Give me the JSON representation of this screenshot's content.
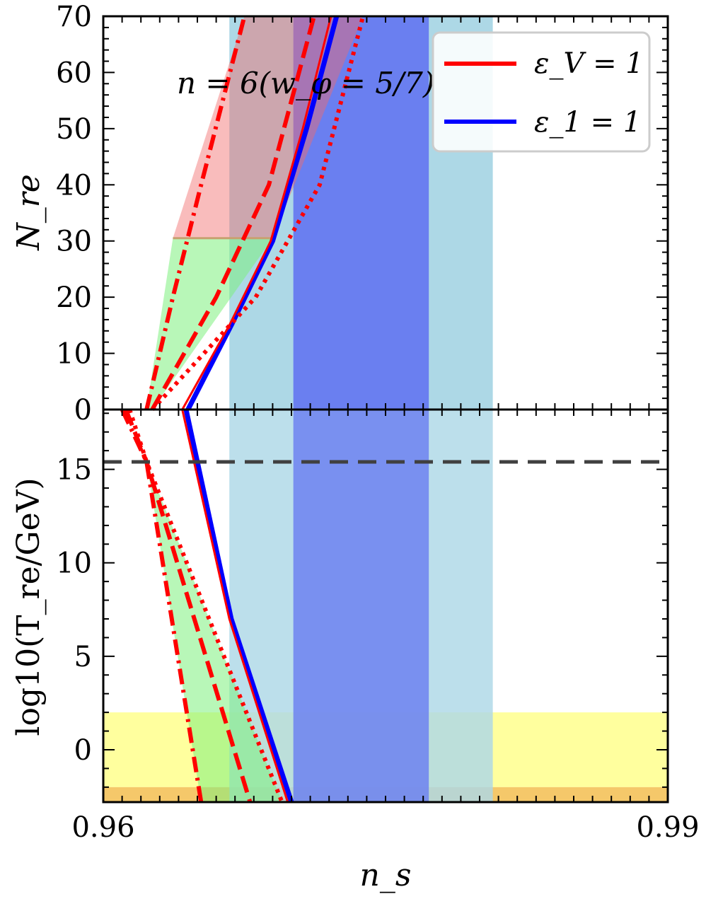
{
  "chart_data": [
    {
      "type": "line",
      "panel": "top",
      "xlim": [
        0.96,
        0.99
      ],
      "ylim": [
        0,
        70
      ],
      "ylabel": "N_re",
      "y_ticks": [
        "0",
        "10",
        "20",
        "30",
        "40",
        "50",
        "60",
        "70"
      ],
      "annotation": "n = 6(w_φ = 5/7)",
      "legend": {
        "placement": "top-right",
        "entries": [
          {
            "label": "ε_V = 1",
            "color": "#ff0000"
          },
          {
            "label": "ε_1 = 1",
            "color": "#0000ff"
          }
        ]
      },
      "bands": [
        {
          "name": "light-blue",
          "color": "#add8e6",
          "x": [
            0.9667,
            0.9807
          ]
        },
        {
          "name": "blue",
          "color": "#6a7ff0",
          "x": [
            0.9701,
            0.9773
          ]
        }
      ],
      "series": [
        {
          "name": "ε_1 = 1",
          "color": "#0000ff",
          "style": "solid",
          "x": [
            0.9645,
            0.9668,
            0.969,
            0.9708,
            0.9724
          ],
          "y": [
            0,
            15,
            30,
            50,
            70
          ]
        },
        {
          "name": "ε_V = 1",
          "color": "#ff0000",
          "style": "solid",
          "x": [
            0.9642,
            0.9667,
            0.9689,
            0.9706,
            0.9721
          ],
          "y": [
            0,
            15,
            30,
            50,
            70
          ]
        },
        {
          "style": "dash-dot",
          "color": "#ff0000",
          "x": [
            0.9623,
            0.9637,
            0.9652,
            0.9675
          ],
          "y": [
            0,
            20,
            40,
            70
          ]
        },
        {
          "style": "dashed",
          "color": "#ff0000",
          "x": [
            0.9626,
            0.966,
            0.9688,
            0.9712
          ],
          "y": [
            0,
            20,
            40,
            70
          ]
        },
        {
          "style": "dotted",
          "color": "#ff0000",
          "x": [
            0.9626,
            0.9681,
            0.9715,
            0.9738
          ],
          "y": [
            0,
            20,
            40,
            70
          ]
        }
      ]
    },
    {
      "type": "line",
      "panel": "bottom",
      "xlim": [
        0.96,
        0.99
      ],
      "ylim": [
        -2.8,
        18.2
      ],
      "xlabel": "n_s",
      "ylabel": "log10(T_re/GeV)",
      "x_ticks": [
        "0.96",
        "0.99"
      ],
      "y_ticks": [
        "0",
        "5",
        "10",
        "15"
      ],
      "hlines": [
        {
          "y": 15.4,
          "style": "dashed",
          "color": "#404040"
        }
      ],
      "bands": [
        {
          "name": "yellow",
          "color": "#ffff9e",
          "y": [
            -2,
            2
          ]
        },
        {
          "name": "orange",
          "color": "#f5c86a",
          "y": [
            -2.8,
            -2
          ]
        }
      ],
      "series": [
        {
          "name": "ε_1 = 1",
          "color": "#0000ff",
          "style": "solid",
          "x": [
            0.9644,
            0.9668,
            0.97
          ],
          "y": [
            18.2,
            7,
            -2.8
          ]
        },
        {
          "name": "ε_V = 1",
          "color": "#ff0000",
          "style": "solid",
          "x": [
            0.9642,
            0.9667,
            0.9698
          ],
          "y": [
            18.2,
            7,
            -2.8
          ]
        },
        {
          "style": "dash-dot",
          "color": "#ff0000",
          "x": [
            0.961,
            0.9623,
            0.9652
          ],
          "y": [
            18.2,
            15.4,
            -2.8
          ]
        },
        {
          "style": "dashed",
          "color": "#ff0000",
          "x": [
            0.9612,
            0.9623,
            0.9678
          ],
          "y": [
            18.2,
            15.4,
            -2.8
          ]
        },
        {
          "style": "dotted",
          "color": "#ff0000",
          "x": [
            0.9614,
            0.9623,
            0.9695
          ],
          "y": [
            18.2,
            15.4,
            -2.8
          ]
        }
      ]
    }
  ]
}
